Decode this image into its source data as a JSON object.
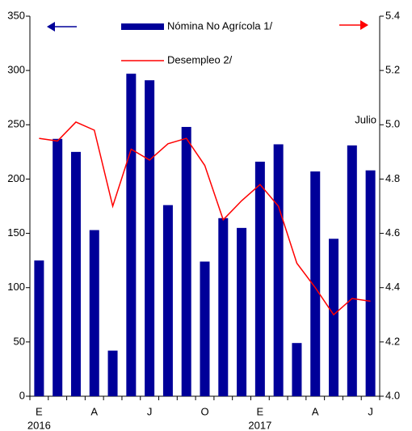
{
  "chart_data": {
    "type": "bar_line",
    "categories": [
      "E",
      null,
      null,
      "A",
      null,
      null,
      "J",
      null,
      null,
      "O",
      null,
      null,
      "E",
      null,
      null,
      "A",
      null,
      null,
      "J"
    ],
    "year_labels": [
      "2016",
      "2017"
    ],
    "series": [
      {
        "name": "Nómina No Agrícola 1/",
        "type": "bar",
        "color": "#000099",
        "axis": "y",
        "values": [
          125,
          237,
          225,
          153,
          42,
          297,
          291,
          176,
          248,
          124,
          164,
          155,
          216,
          232,
          49,
          207,
          145,
          231,
          208
        ]
      },
      {
        "name": "Desempleo 2/",
        "type": "line",
        "color": "#ff0000",
        "axis": "y2",
        "values": [
          4.95,
          4.94,
          5.01,
          4.98,
          4.7,
          4.91,
          4.87,
          4.93,
          4.95,
          4.85,
          4.65,
          4.72,
          4.78,
          4.7,
          4.49,
          4.4,
          4.3,
          4.36,
          4.35
        ]
      }
    ],
    "annotation": "Julio",
    "ylim": [
      0,
      350
    ],
    "yticks": [
      0,
      50,
      100,
      150,
      200,
      250,
      300,
      350
    ],
    "y2lim": [
      4,
      5.4
    ],
    "y2ticks": [
      {
        "value": 4,
        "label": "4.0"
      },
      4.2,
      4.4,
      4.6,
      4.8,
      {
        "value": 5,
        "label": "5.0"
      },
      5.2,
      5.4
    ]
  }
}
